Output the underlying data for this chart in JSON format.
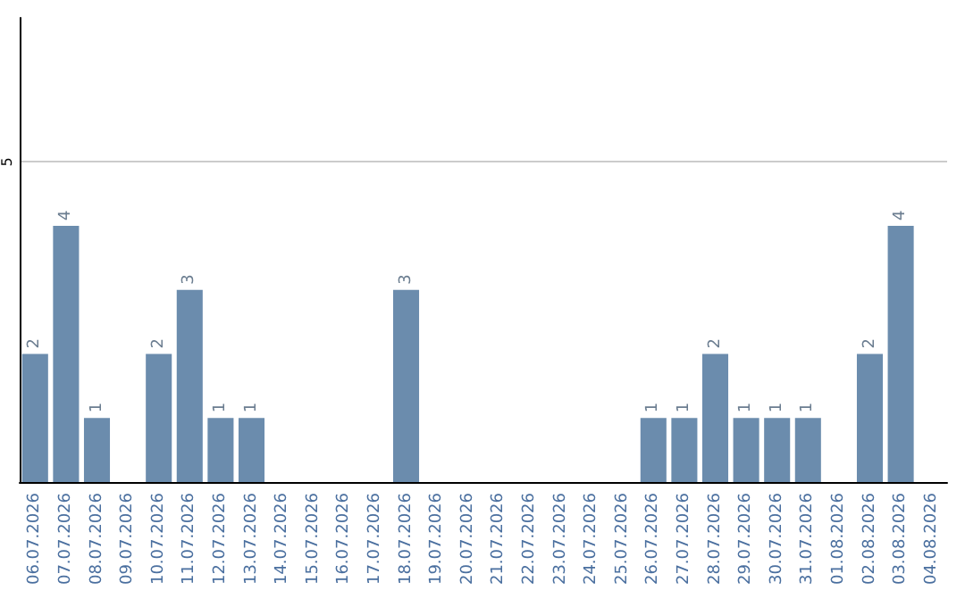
{
  "chart_data": {
    "type": "bar",
    "categories": [
      "06.07.2026",
      "07.07.2026",
      "08.07.2026",
      "09.07.2026",
      "10.07.2026",
      "11.07.2026",
      "12.07.2026",
      "13.07.2026",
      "14.07.2026",
      "15.07.2026",
      "16.07.2026",
      "17.07.2026",
      "18.07.2026",
      "19.07.2026",
      "20.07.2026",
      "21.07.2026",
      "22.07.2026",
      "23.07.2026",
      "24.07.2026",
      "25.07.2026",
      "26.07.2026",
      "27.07.2026",
      "28.07.2026",
      "29.07.2026",
      "30.07.2026",
      "31.07.2026",
      "01.08.2026",
      "02.08.2026",
      "03.08.2026",
      "04.08.2026"
    ],
    "values": [
      2,
      4,
      1,
      0,
      2,
      3,
      1,
      1,
      0,
      0,
      0,
      0,
      3,
      0,
      0,
      0,
      0,
      0,
      0,
      0,
      1,
      1,
      2,
      1,
      1,
      1,
      0,
      2,
      4,
      0
    ],
    "value_labels": [
      "2",
      "4",
      "1",
      null,
      "2",
      "3",
      "1",
      "1",
      null,
      null,
      null,
      null,
      "3",
      null,
      null,
      null,
      null,
      null,
      null,
      null,
      "1",
      "1",
      "2",
      "1",
      "1",
      "1",
      null,
      "2",
      "4",
      null
    ],
    "color": "#6b8cad",
    "ylim": [
      0,
      7.25
    ],
    "yticks": [
      5
    ],
    "grid": "y"
  }
}
